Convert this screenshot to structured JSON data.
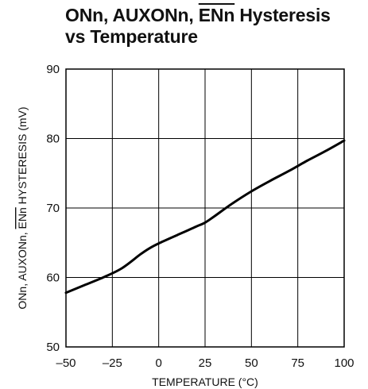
{
  "title": {
    "line1_a": "ONn, AUXONn, ",
    "line1_b": "ENn",
    "line1_c": " Hysteresis",
    "line2": "vs Temperature"
  },
  "chart_data": {
    "type": "line",
    "title": "ONn, AUXONn, ENn Hysteresis vs Temperature",
    "xlabel": "TEMPERATURE (°C)",
    "ylabel_a": "ONn, AUXONn, ",
    "ylabel_b": "ENn",
    "ylabel_c": " HYSTERESIS (mV)",
    "xlim": [
      -50,
      100
    ],
    "ylim": [
      50,
      90
    ],
    "xticks": [
      -50,
      -25,
      0,
      25,
      50,
      75,
      100
    ],
    "yticks": [
      50,
      60,
      70,
      80,
      90
    ],
    "xtick_labels": [
      "–50",
      "–25",
      "0",
      "25",
      "50",
      "75",
      "100"
    ],
    "ytick_labels": [
      "50",
      "60",
      "70",
      "80",
      "90"
    ],
    "grid": true,
    "color": "#000000",
    "series": [
      {
        "x": [
          -50,
          -40,
          -30,
          -20,
          -10,
          -5,
          0,
          10,
          20,
          25,
          30,
          40,
          50,
          60,
          70,
          80,
          90,
          100
        ],
        "values": [
          57.8,
          58.9,
          60.0,
          61.3,
          63.3,
          64.2,
          64.9,
          66.1,
          67.3,
          67.9,
          68.8,
          70.7,
          72.4,
          73.9,
          75.3,
          76.8,
          78.2,
          79.7
        ]
      }
    ]
  }
}
